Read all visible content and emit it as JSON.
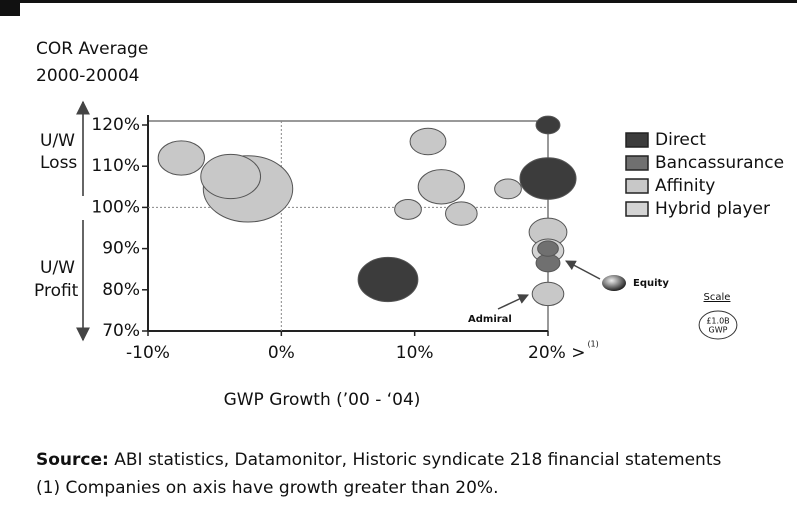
{
  "chart_data": {
    "type": "bubble",
    "title_lines": [
      "COR Average",
      "2000-20004"
    ],
    "y_group_labels": [
      [
        "U/W",
        "Loss"
      ],
      [
        "U/W",
        "Profit"
      ]
    ],
    "xlabel": "GWP Growth (’00 - ‘04)",
    "xlim": [
      -10,
      20
    ],
    "xticks": [
      {
        "value": -10,
        "label": "-10%"
      },
      {
        "value": 0,
        "label": "0%"
      },
      {
        "value": 10,
        "label": "10%"
      },
      {
        "value": 20,
        "label": "20% >"
      }
    ],
    "xtick_note": "(1)",
    "ylim": [
      70,
      120
    ],
    "yticks": [
      {
        "value": 70,
        "label": "70%"
      },
      {
        "value": 80,
        "label": "80%"
      },
      {
        "value": 90,
        "label": "90%"
      },
      {
        "value": 100,
        "label": "100%"
      },
      {
        "value": 110,
        "label": "110%"
      },
      {
        "value": 120,
        "label": "120%"
      }
    ],
    "reference_lines": {
      "x": 0,
      "y": 100
    },
    "legend_position": "right",
    "series": [
      {
        "name": "Direct",
        "color": "#3c3c3c",
        "x": [
          8,
          20,
          20
        ],
        "values": [
          82.5,
          107,
          120
        ],
        "sizes": [
          2.5,
          2.2,
          0.4
        ]
      },
      {
        "name": "Bancassurance",
        "color": "#707070",
        "x": [
          20,
          20
        ],
        "values": [
          86.5,
          90
        ],
        "sizes": [
          0.4,
          0.3
        ]
      },
      {
        "name": "Affinity",
        "color": "#c8c8c8",
        "x": [
          -7.5,
          -2.5,
          -3.8,
          11,
          12,
          9.5,
          13.5,
          17,
          20,
          20
        ],
        "values": [
          112,
          104.5,
          107.5,
          116,
          105,
          99.5,
          98.5,
          104.5,
          94,
          79
        ],
        "sizes": [
          1.5,
          5.6,
          2.5,
          0.9,
          1.5,
          0.5,
          0.7,
          0.5,
          1.0,
          0.7
        ]
      },
      {
        "name": "Hybrid player",
        "color": "#d4d4d4",
        "x": [
          20
        ],
        "values": [
          89.5
        ],
        "sizes": [
          0.7
        ]
      }
    ],
    "annotations": [
      "Equity",
      "Admiral"
    ],
    "scale": {
      "title": "Scale",
      "lines": [
        "£1.0B",
        "GWP"
      ],
      "size": 1.0
    },
    "source_label": "Source:",
    "source_text": " ABI statistics, Datamonitor, Historic syndicate 218 financial statements",
    "footnote": "(1) Companies on axis have growth greater than 20%."
  }
}
